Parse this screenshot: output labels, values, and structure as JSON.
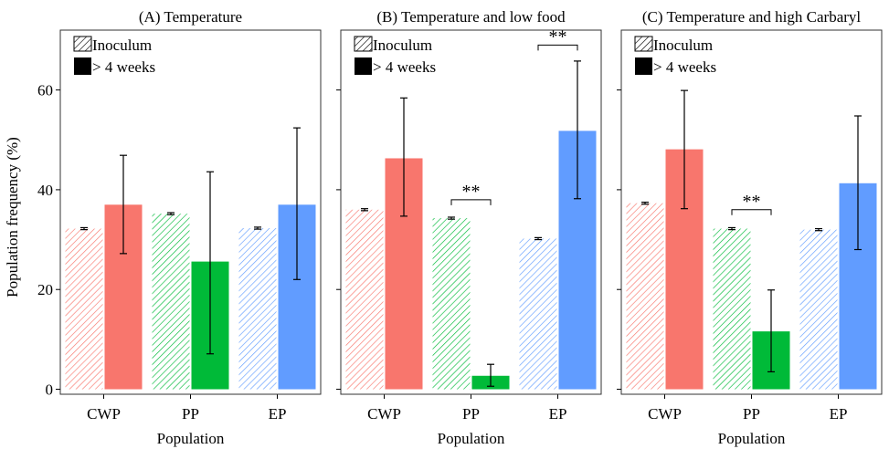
{
  "figure": {
    "ylabel": "Population frequency (%)",
    "xlabel": "Population",
    "legend": {
      "inoculum_label": "Inoculum",
      "weeks_label": "> 4 weeks",
      "placement": "top-left"
    }
  },
  "colors": {
    "CWP": "#f8766d",
    "PP": "#00ba38",
    "EP": "#619cff",
    "error_bar": "#000000"
  },
  "chart_data": [
    {
      "type": "bar",
      "title": "(A) Temperature",
      "categories": [
        "CWP",
        "PP",
        "EP"
      ],
      "ylim": [
        -1,
        72
      ],
      "yticks": [
        0,
        20,
        40,
        60
      ],
      "series": [
        {
          "name": "Inoculum",
          "values": [
            32.2,
            35.2,
            32.3
          ],
          "err_low": [
            32.0,
            35.0,
            32.1
          ],
          "err_high": [
            32.4,
            35.4,
            32.5
          ]
        },
        {
          "name": "> 4 weeks",
          "values": [
            37.0,
            25.6,
            37.0
          ],
          "err_low": [
            27.2,
            7.1,
            22.0
          ],
          "err_high": [
            46.9,
            43.6,
            52.4
          ]
        }
      ],
      "annotations": []
    },
    {
      "type": "bar",
      "title": "(B) Temperature and low food",
      "categories": [
        "CWP",
        "PP",
        "EP"
      ],
      "ylim": [
        -1,
        72
      ],
      "yticks": [
        0,
        20,
        40,
        60
      ],
      "series": [
        {
          "name": "Inoculum",
          "values": [
            36.0,
            34.3,
            30.2
          ],
          "err_low": [
            35.8,
            34.1,
            30.0
          ],
          "err_high": [
            36.2,
            34.5,
            30.4
          ]
        },
        {
          "name": "> 4 weeks",
          "values": [
            46.3,
            2.7,
            51.8
          ],
          "err_low": [
            34.7,
            0.6,
            38.2
          ],
          "err_high": [
            58.4,
            5.0,
            65.8
          ]
        }
      ],
      "annotations": [
        {
          "category": "PP",
          "text": "**",
          "y": 38.0
        },
        {
          "category": "EP",
          "text": "**",
          "y": 69.0
        }
      ]
    },
    {
      "type": "bar",
      "title": "(C) Temperature and high Carbaryl",
      "categories": [
        "CWP",
        "PP",
        "EP"
      ],
      "ylim": [
        -1,
        72
      ],
      "yticks": [
        0,
        20,
        40,
        60
      ],
      "series": [
        {
          "name": "Inoculum",
          "values": [
            37.3,
            32.2,
            32.0
          ],
          "err_low": [
            37.1,
            32.0,
            31.8
          ],
          "err_high": [
            37.5,
            32.4,
            32.2
          ]
        },
        {
          "name": "> 4 weeks",
          "values": [
            48.1,
            11.6,
            41.3
          ],
          "err_low": [
            36.2,
            3.5,
            28.0
          ],
          "err_high": [
            59.9,
            19.9,
            54.8
          ]
        }
      ],
      "annotations": [
        {
          "category": "PP",
          "text": "**",
          "y": 36.0
        }
      ]
    }
  ]
}
